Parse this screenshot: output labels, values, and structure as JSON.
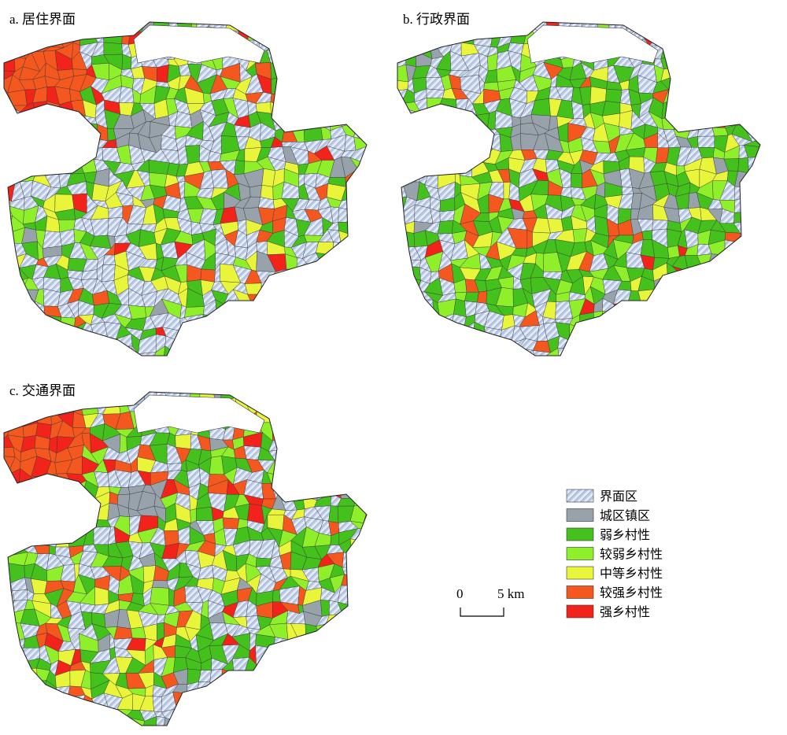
{
  "panels": [
    {
      "title": "a. 居住界面"
    },
    {
      "title": "b. 行政界面"
    },
    {
      "title": "c. 交通界面"
    }
  ],
  "legend": [
    {
      "label": "界面区",
      "color": "#b9c9e6"
    },
    {
      "label": "城区镇区",
      "color": "#97a2ab"
    },
    {
      "label": "弱乡村性",
      "color": "#44c11c"
    },
    {
      "label": "较弱乡村性",
      "color": "#8fef2a"
    },
    {
      "label": "中等乡村性",
      "color": "#e9f53a"
    },
    {
      "label": "较强乡村性",
      "color": "#f4581f"
    },
    {
      "label": "强乡村性",
      "color": "#f2231a"
    }
  ],
  "scale_bar": {
    "labels": [
      "0",
      "5 km"
    ]
  }
}
